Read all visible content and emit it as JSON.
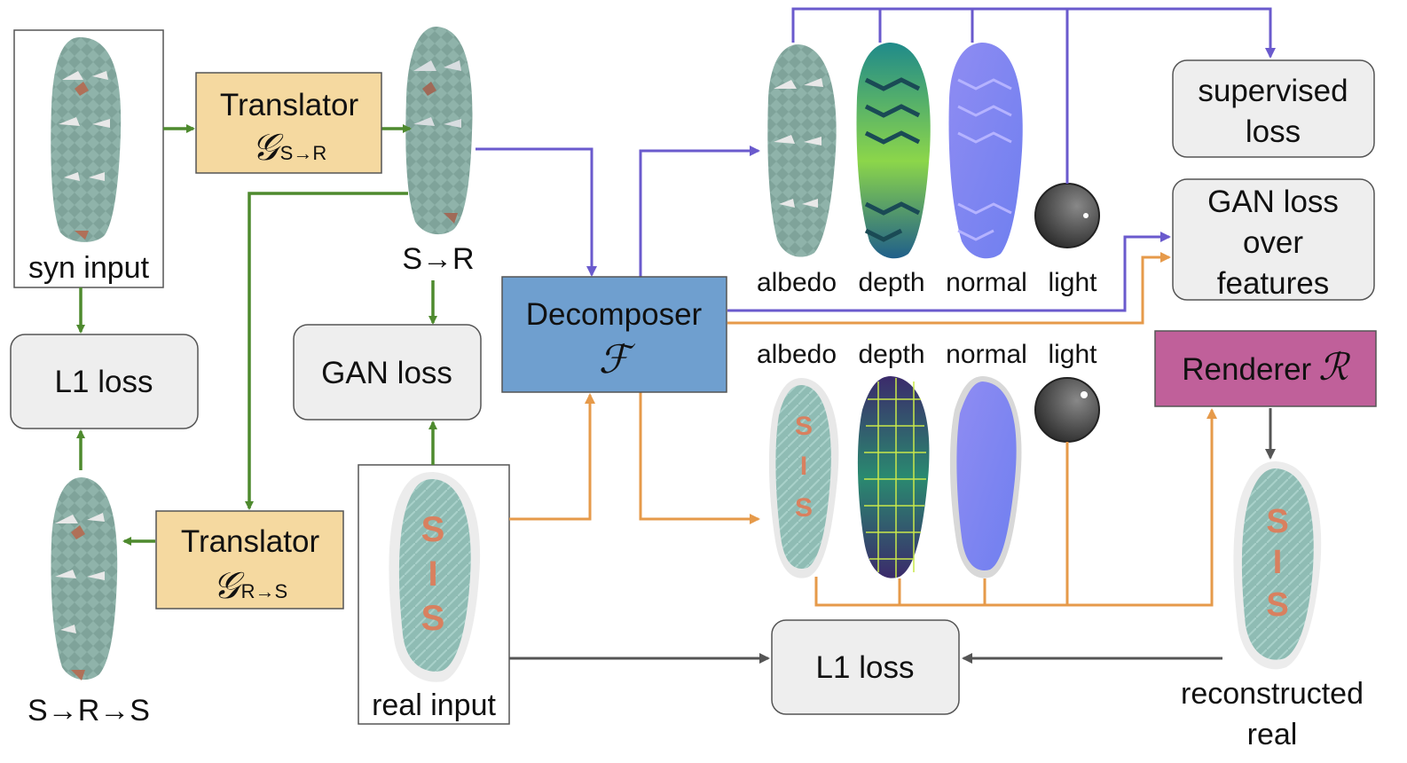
{
  "labels": {
    "syn_input": "syn input",
    "s_to_r": "S→R",
    "s_to_r_to_s": "S→R→S",
    "real_input": "real input",
    "reconstructed_line1": "reconstructed",
    "reconstructed_line2": "real"
  },
  "boxes": {
    "translator_sr": {
      "title": "Translator",
      "symbol": "𝒢",
      "sub": "S→R"
    },
    "translator_rs": {
      "title": "Translator",
      "symbol": "𝒢",
      "sub": "R→S"
    },
    "decomposer": {
      "title": "Decomposer",
      "symbol": "ℱ"
    },
    "renderer": {
      "title": "Renderer",
      "symbol": "ℛ"
    },
    "l1_loss_left": "L1 loss",
    "gan_loss": "GAN loss",
    "l1_loss_bottom": "L1 loss",
    "supervised_loss_line1": "supervised",
    "supervised_loss_line2": "loss",
    "gan_features_line1": "GAN loss",
    "gan_features_line2": "over",
    "gan_features_line3": "features"
  },
  "component_labels_top": [
    "albedo",
    "depth",
    "normal",
    "light"
  ],
  "component_labels_bottom": [
    "albedo",
    "depth",
    "normal",
    "light"
  ],
  "colors": {
    "green_arrow": "#4e8a2e",
    "purple_arrow": "#6a5acd",
    "orange_arrow": "#e69a4a",
    "gray_arrow": "#555555",
    "translator_fill": "#f5d9a0",
    "decomposer_fill": "#6f9fcf",
    "renderer_fill": "#c0609a",
    "loss_fill": "#eeeeee"
  }
}
